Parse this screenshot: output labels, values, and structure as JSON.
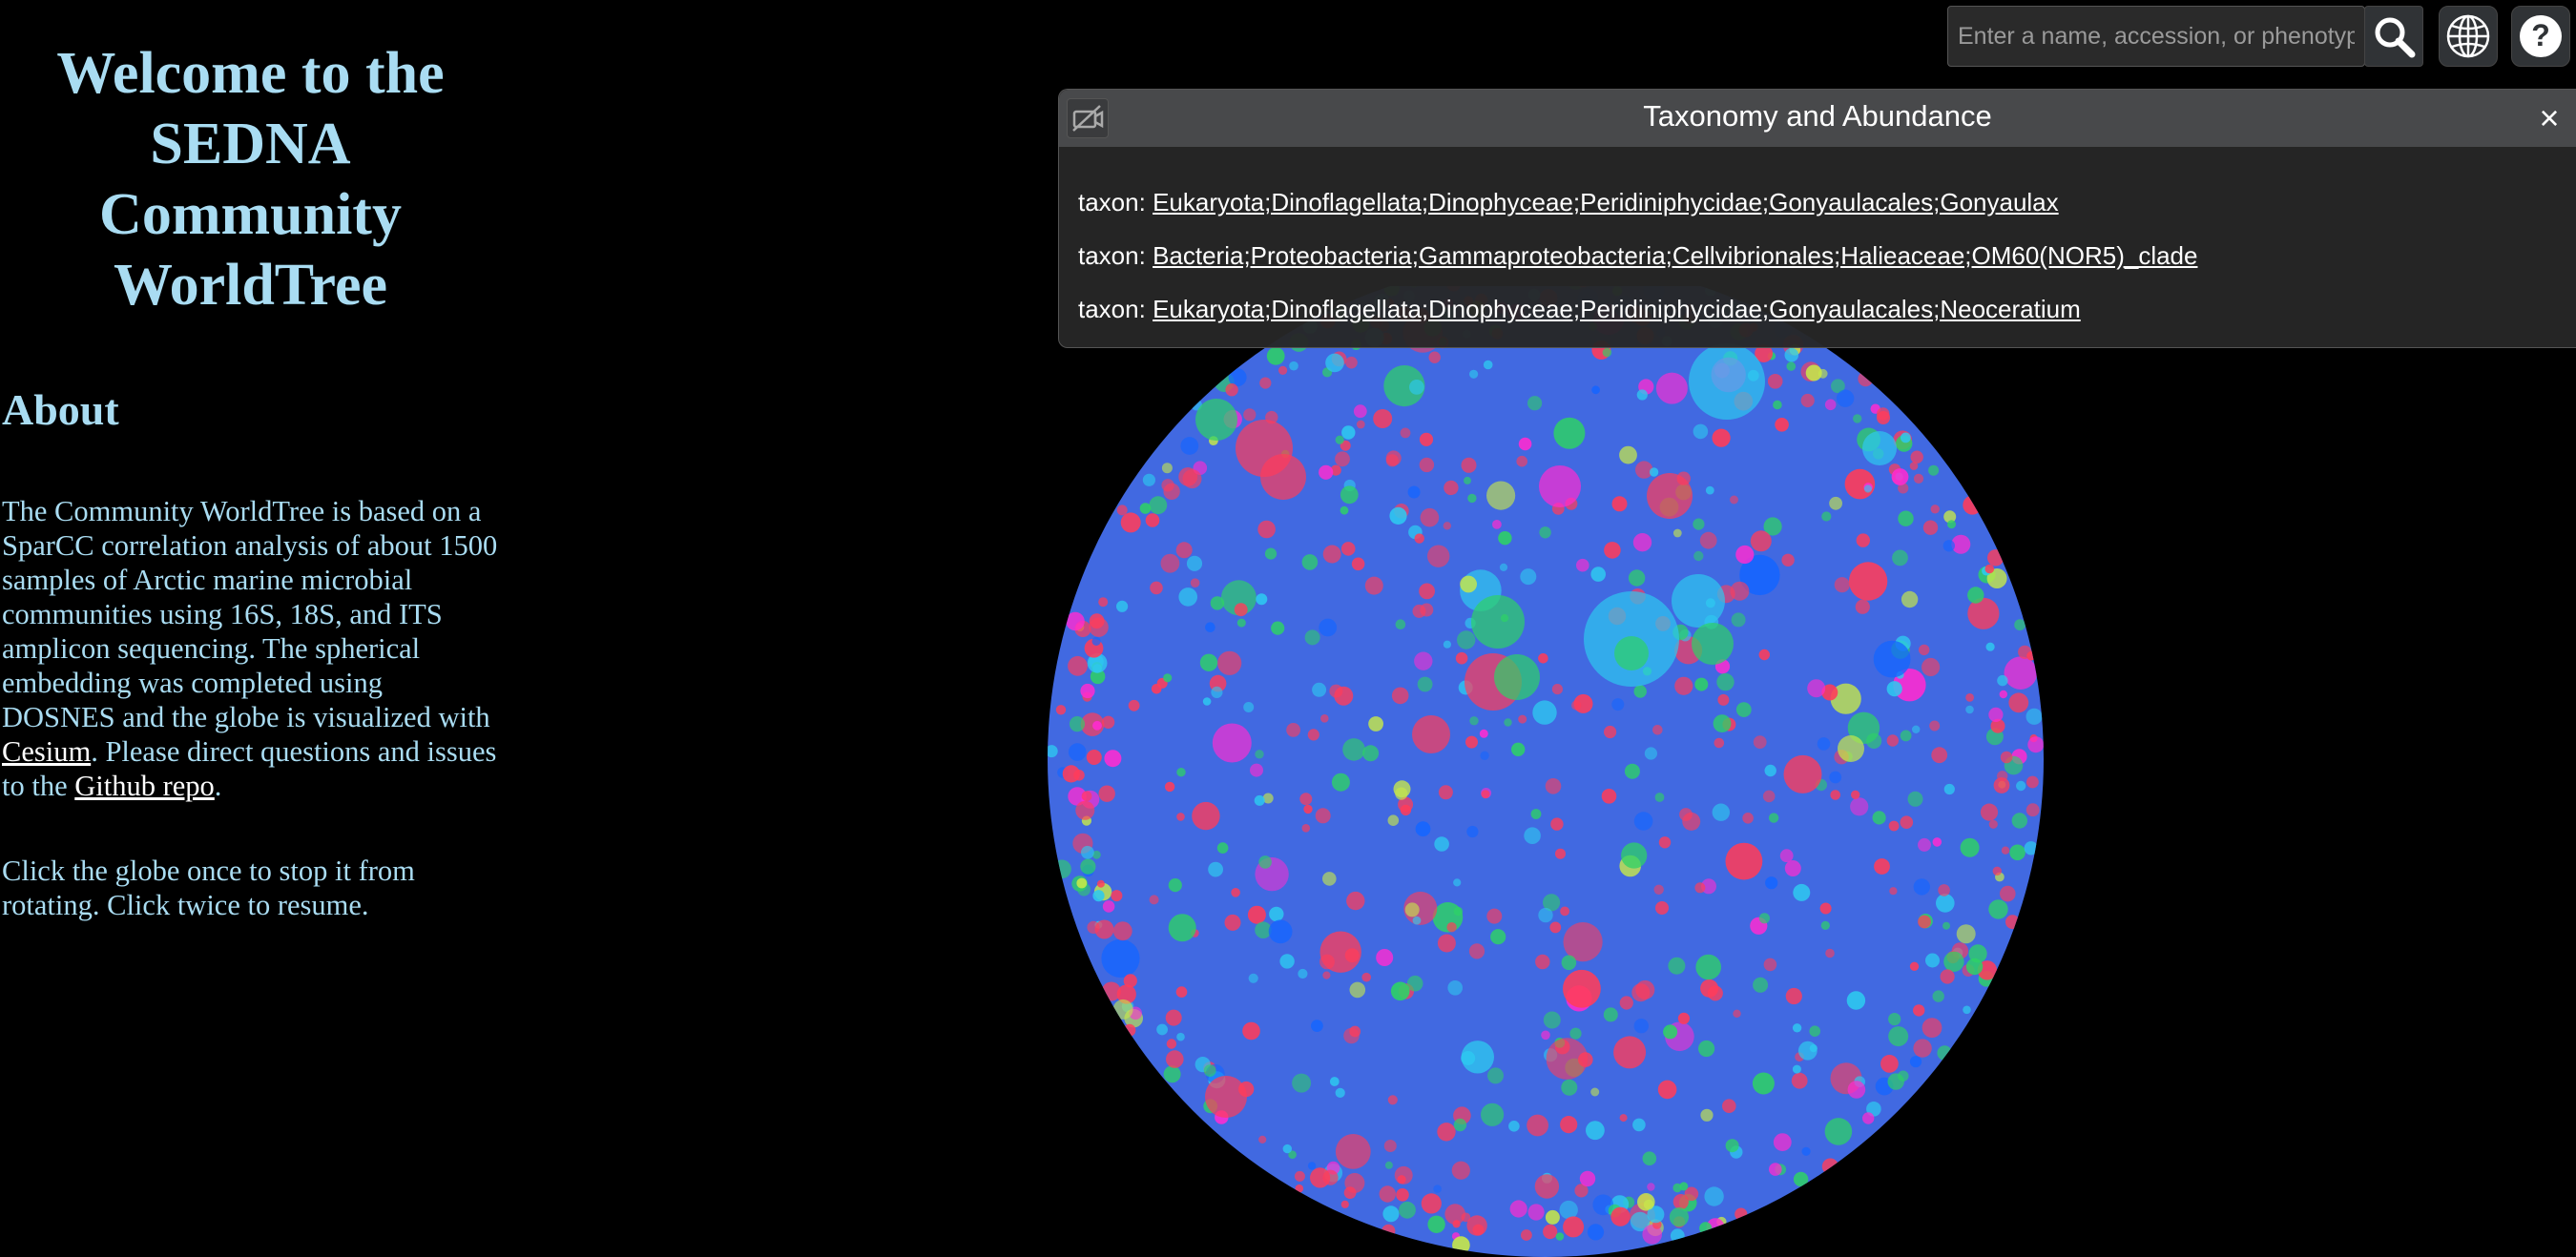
{
  "sidebar": {
    "title": "Welcome to the SEDNA Community WorldTree",
    "about_heading": "About",
    "about_text_1": "The Community WorldTree is based on a SparCC correlation analysis of about 1500 samples of Arctic marine microbial communities using 16S, 18S, and ITS amplicon sequencing. The spherical embedding was completed using DOSNES and the globe is visualized with ",
    "cesium_link": "Cesium",
    "about_text_2": ". Please direct questions and issues to the ",
    "github_link": "Github repo",
    "about_text_3": ".",
    "instructions": "Click the globe once to stop it from rotating. Click twice to resume."
  },
  "toolbar": {
    "search_placeholder": "Enter a name, accession, or phenotype",
    "search_icon": "magnifier-icon",
    "globe_icon": "globe-icon",
    "help_icon": "question-icon",
    "help_label": "?"
  },
  "info_panel": {
    "title": "Taxonomy and Abundance",
    "close_label": "×",
    "rows": [
      {
        "label": "taxon: ",
        "value": "Eukaryota;Dinoflagellata;Dinophyceae;Peridiniphycidae;Gonyaulacales;Gonyaulax"
      },
      {
        "label": "taxon: ",
        "value": "Bacteria;Proteobacteria;Gammaproteobacteria;Cellvibrionales;Halieaceae;OM60(NOR5)_clade"
      },
      {
        "label": "taxon: ",
        "value": "Eukaryota;Dinoflagellata;Dinophyceae;Peridiniphycidae;Gonyaulacales;Neoceratium"
      }
    ]
  },
  "colors": {
    "globe_fill": "#4169e1",
    "title_text": "#a9dcf2",
    "point_palette": [
      "#ff3c5a",
      "#2ed166",
      "#2ec8f0",
      "#ff2bd1",
      "#1565ff",
      "#c6e84a"
    ]
  }
}
